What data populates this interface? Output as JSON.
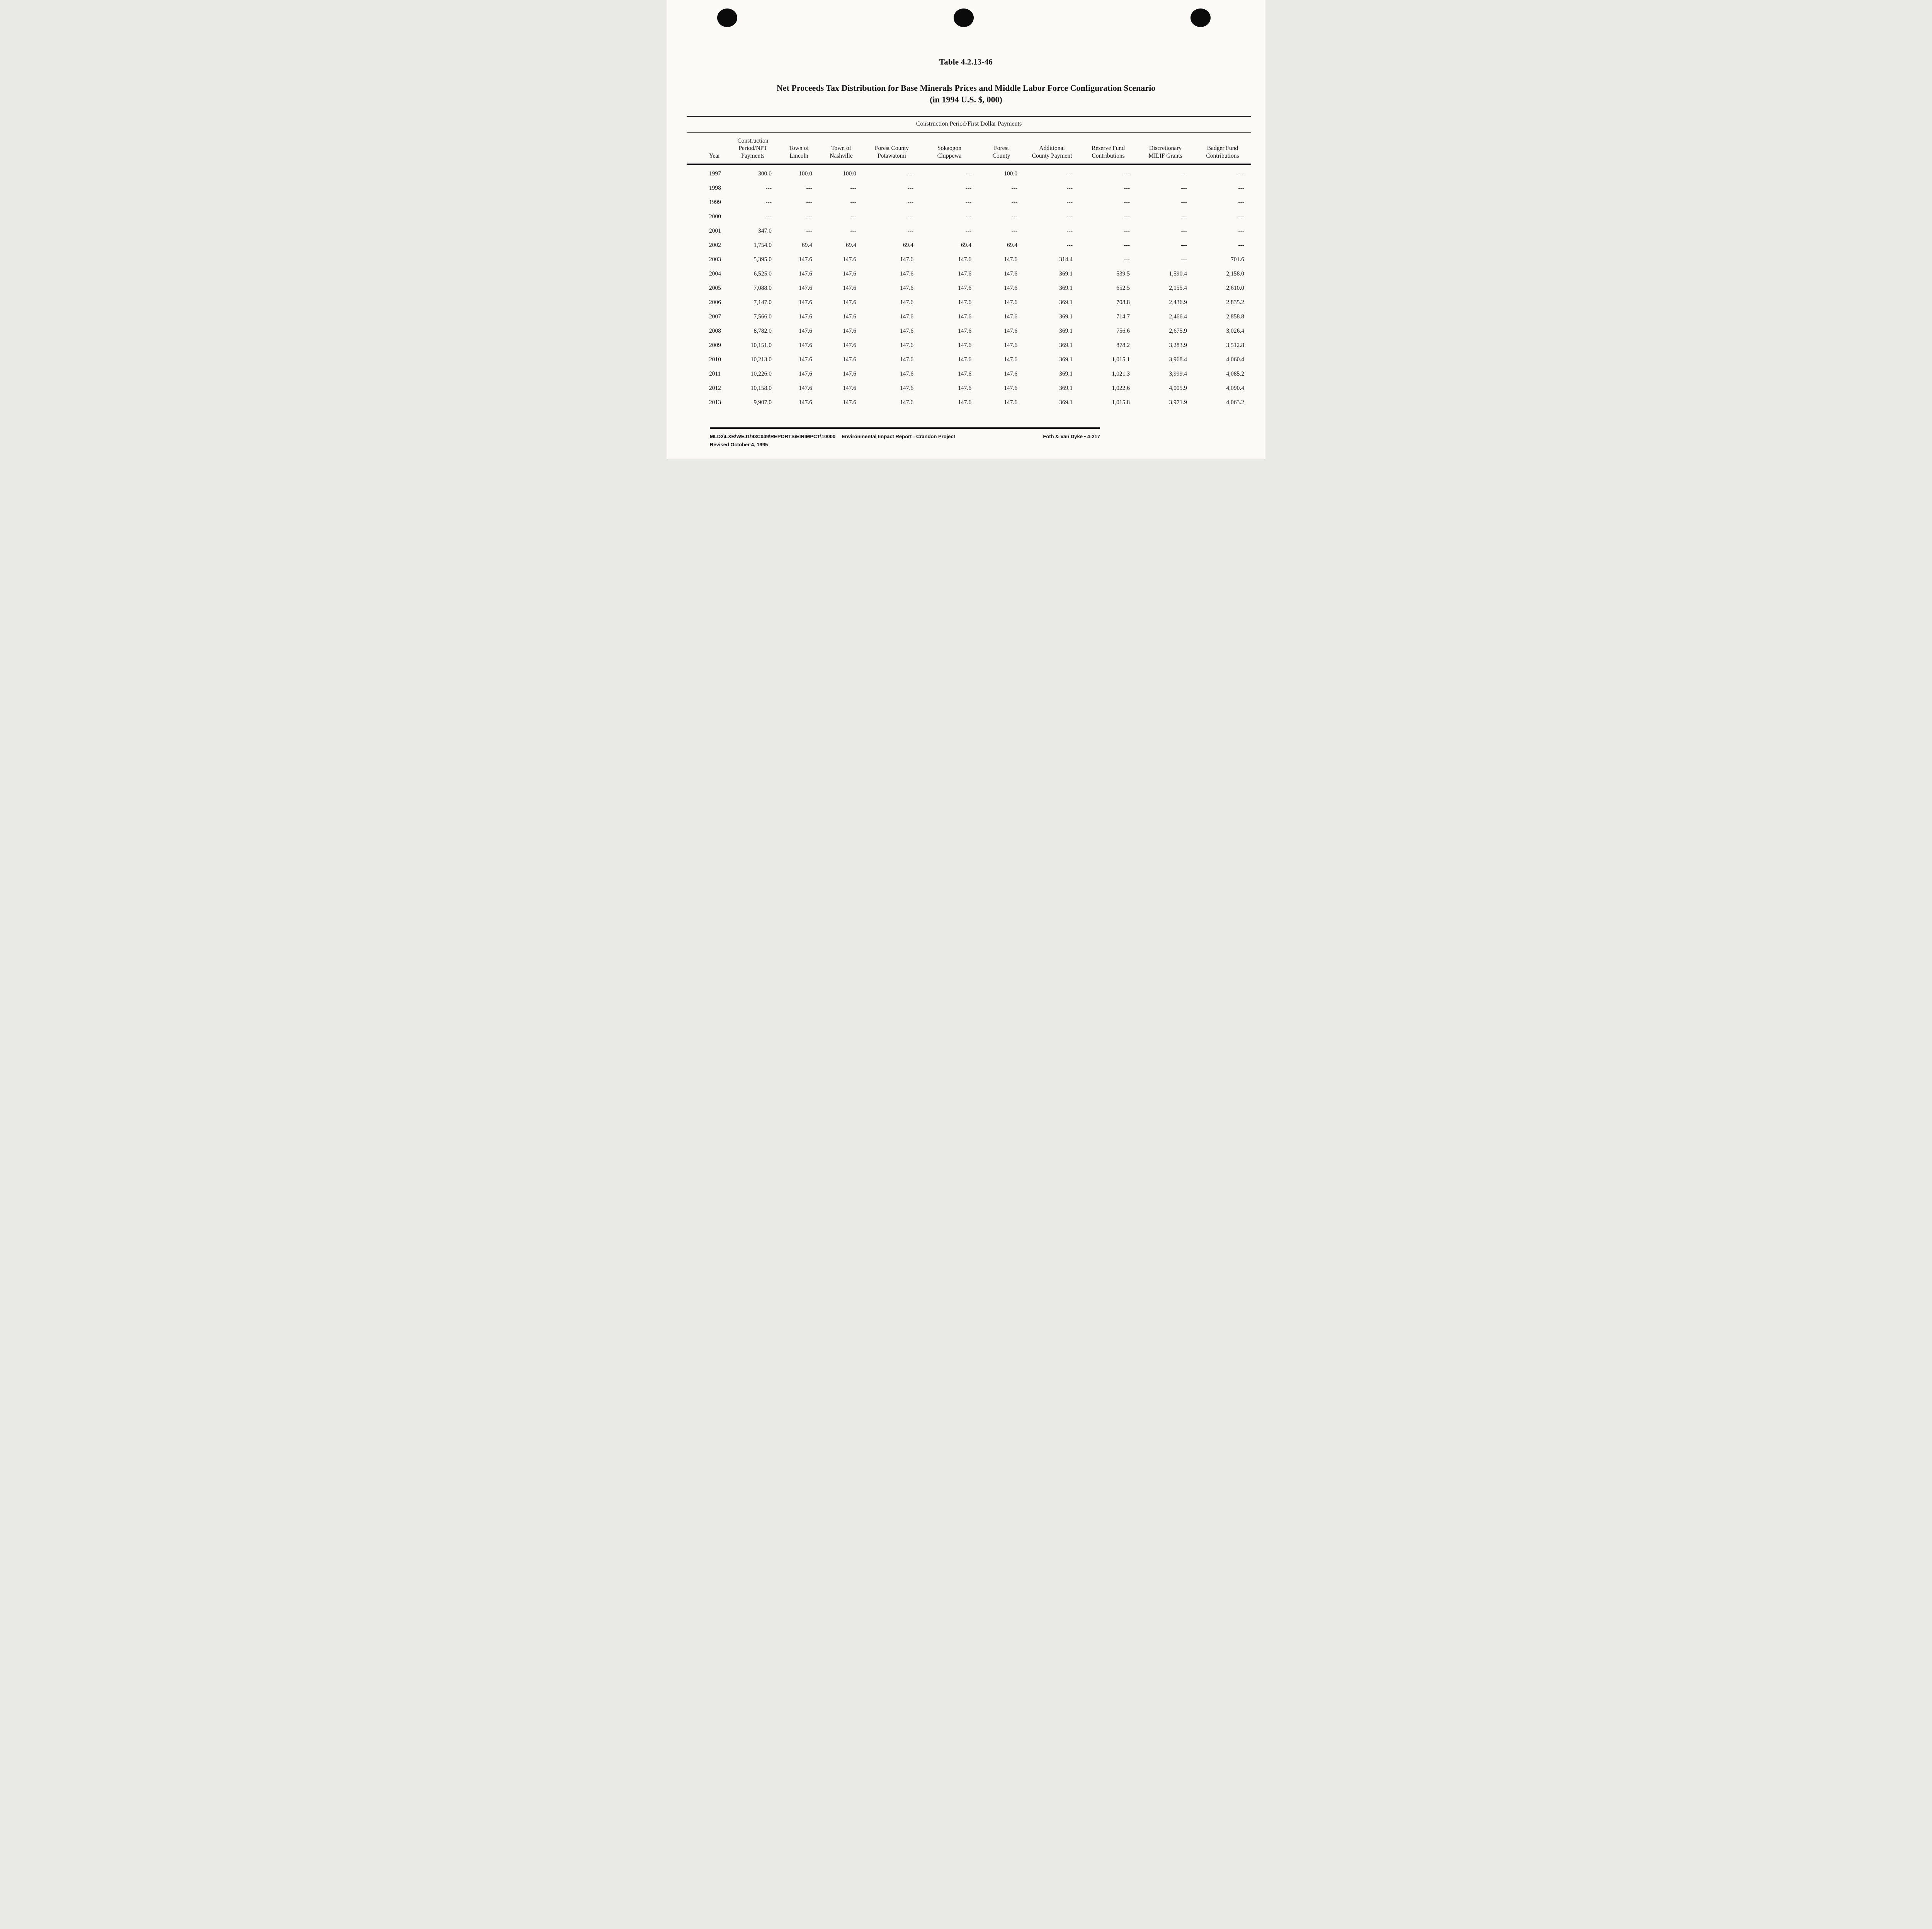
{
  "header": {
    "table_number": "Table 4.2.13-46",
    "title": "Net Proceeds Tax Distribution for Base Minerals Prices and Middle Labor Force Configuration Scenario",
    "subtitle": "(in 1994 U.S. $, 000)"
  },
  "table": {
    "group_header": "Construction Period/First Dollar Payments",
    "columns": [
      "Year",
      "Construction\nPeriod/NPT\nPayments",
      "Town of\nLincoln",
      "Town of\nNashville",
      "Forest County\nPotawatomi",
      "Sokaogon\nChippewa",
      "Forest\nCounty",
      "Additional\nCounty Payment",
      "Reserve Fund\nContributions",
      "Discretionary\nMILIF Grants",
      "Badger Fund\nContributions"
    ],
    "rows": [
      [
        "1997",
        "300.0",
        "100.0",
        "100.0",
        "---",
        "---",
        "100.0",
        "---",
        "---",
        "---",
        "---"
      ],
      [
        "1998",
        "---",
        "---",
        "---",
        "---",
        "---",
        "---",
        "---",
        "---",
        "---",
        "---"
      ],
      [
        "1999",
        "---",
        "---",
        "---",
        "---",
        "---",
        "---",
        "---",
        "---",
        "---",
        "---"
      ],
      [
        "2000",
        "---",
        "---",
        "---",
        "---",
        "---",
        "---",
        "---",
        "---",
        "---",
        "---"
      ],
      [
        "2001",
        "347.0",
        "---",
        "---",
        "---",
        "---",
        "---",
        "---",
        "---",
        "---",
        "---"
      ],
      [
        "2002",
        "1,754.0",
        "69.4",
        "69.4",
        "69.4",
        "69.4",
        "69.4",
        "---",
        "---",
        "---",
        "---"
      ],
      [
        "2003",
        "5,395.0",
        "147.6",
        "147.6",
        "147.6",
        "147.6",
        "147.6",
        "314.4",
        "---",
        "---",
        "701.6"
      ],
      [
        "2004",
        "6,525.0",
        "147.6",
        "147.6",
        "147.6",
        "147.6",
        "147.6",
        "369.1",
        "539.5",
        "1,590.4",
        "2,158.0"
      ],
      [
        "2005",
        "7,088.0",
        "147.6",
        "147.6",
        "147.6",
        "147.6",
        "147.6",
        "369.1",
        "652.5",
        "2,155.4",
        "2,610.0"
      ],
      [
        "2006",
        "7,147.0",
        "147.6",
        "147.6",
        "147.6",
        "147.6",
        "147.6",
        "369.1",
        "708.8",
        "2,436.9",
        "2,835.2"
      ],
      [
        "2007",
        "7,566.0",
        "147.6",
        "147.6",
        "147.6",
        "147.6",
        "147.6",
        "369.1",
        "714.7",
        "2,466.4",
        "2,858.8"
      ],
      [
        "2008",
        "8,782.0",
        "147.6",
        "147.6",
        "147.6",
        "147.6",
        "147.6",
        "369.1",
        "756.6",
        "2,675.9",
        "3,026.4"
      ],
      [
        "2009",
        "10,151.0",
        "147.6",
        "147.6",
        "147.6",
        "147.6",
        "147.6",
        "369.1",
        "878.2",
        "3,283.9",
        "3,512.8"
      ],
      [
        "2010",
        "10,213.0",
        "147.6",
        "147.6",
        "147.6",
        "147.6",
        "147.6",
        "369.1",
        "1,015.1",
        "3,968.4",
        "4,060.4"
      ],
      [
        "2011",
        "10,226.0",
        "147.6",
        "147.6",
        "147.6",
        "147.6",
        "147.6",
        "369.1",
        "1,021.3",
        "3,999.4",
        "4,085.2"
      ],
      [
        "2012",
        "10,158.0",
        "147.6",
        "147.6",
        "147.6",
        "147.6",
        "147.6",
        "369.1",
        "1,022.6",
        "4,005.9",
        "4,090.4"
      ],
      [
        "2013",
        "9,907.0",
        "147.6",
        "147.6",
        "147.6",
        "147.6",
        "147.6",
        "369.1",
        "1,015.8",
        "3,971.9",
        "4,063.2"
      ]
    ]
  },
  "footer": {
    "file_path": "MLD2\\LXB\\WEJ1\\93C049\\REPORTS\\EIRIMPCT\\10000",
    "report_title": "Environmental Impact Report - Crandon Project",
    "revision": "Revised October 4, 1995",
    "right_text": "Foth & Van Dyke • 4-217"
  }
}
